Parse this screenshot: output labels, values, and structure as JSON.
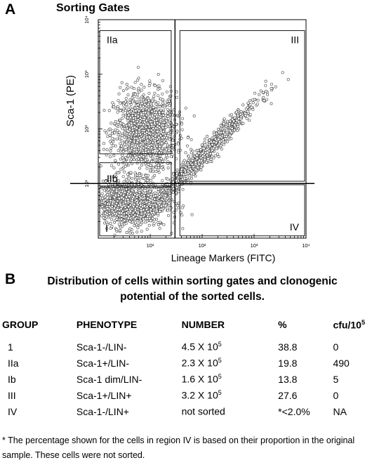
{
  "panel_a": {
    "letter": "A",
    "title": "Sorting Gates"
  },
  "chart_data": {
    "type": "scatter",
    "title": "Sorting Gates",
    "xlabel": "Lineage Markers (FITC)",
    "ylabel": "Sca-1 (PE)",
    "xscale": "log",
    "yscale": "log",
    "x_ticks": [
      "10⁰",
      "10¹",
      "10²",
      "10³",
      "10⁴"
    ],
    "y_ticks": [
      "10⁰",
      "10¹",
      "10²",
      "10³",
      "10⁴"
    ],
    "xlim": [
      1,
      10000
    ],
    "ylim": [
      1,
      10000
    ],
    "threshold_x": 30,
    "threshold_y": 10,
    "gates": [
      {
        "label": "IIa",
        "x": [
          1,
          27
        ],
        "y": [
          35,
          6300
        ]
      },
      {
        "label": "III",
        "x": [
          35,
          10000
        ],
        "y": [
          11,
          6300
        ]
      },
      {
        "label": "IIb",
        "x": [
          1,
          27
        ],
        "y": [
          9,
          24
        ]
      },
      {
        "label": "IV",
        "x": [
          35,
          10000
        ],
        "y": [
          1.1,
          9.5
        ]
      },
      {
        "label": "I",
        "x": [
          1,
          27
        ],
        "y": [
          1.1,
          8.5
        ]
      }
    ],
    "populations": [
      {
        "name": "",
        "mean_log_x": 0.9,
        "mean_log_y": 1.95,
        "sd_log_x": 0.3,
        "sd_log_y": 0.36,
        "count": 1400
      },
      {
        "name": "",
        "mean_log_x": 0.55,
        "mean_log_y": 0.65,
        "sd_log_x": 0.38,
        "sd_log_y": 0.22,
        "count": 1200
      },
      {
        "name": "",
        "mean_log_x": 2.0,
        "mean_log_y": 1.5,
        "sd_log_x": 0.52,
        "sd_log_y": 0.1,
        "count": 1000,
        "correlated": true
      }
    ]
  },
  "panel_b": {
    "letter": "B",
    "title": "Distribution of cells within sorting gates and clonogenic potential of the sorted cells."
  },
  "table": {
    "headers": {
      "group": "GROUP",
      "phenotype": "PHENOTYPE",
      "number": "NUMBER",
      "percent": "%",
      "cfu": "cfu/10",
      "cfu_exp": "5"
    },
    "rows": [
      {
        "group": "1",
        "phenotype": "Sca-1-/LIN-",
        "number": "4.5 X 10",
        "exp": "5",
        "percent": "38.8",
        "cfu": "0"
      },
      {
        "group": "IIa",
        "phenotype": "Sca-1+/LIN-",
        "number": "2.3 X 10",
        "exp": "5",
        "percent": "19.8",
        "cfu": "490"
      },
      {
        "group": "Ib",
        "phenotype": "Sca-1 dim/LIN-",
        "number": "1.6 X 10",
        "exp": "5",
        "percent": "13.8",
        "cfu": "5"
      },
      {
        "group": "III",
        "phenotype": "Sca-1+/LIN+",
        "number": "3.2 X 10",
        "exp": "5",
        "percent": "27.6",
        "cfu": "0"
      },
      {
        "group": "IV",
        "phenotype": "Sca-1-/LIN+",
        "number": "not sorted",
        "exp": "",
        "percent": "*<2.0%",
        "cfu": "NA"
      }
    ]
  },
  "footnote": {
    "mark": "*",
    "text": " The percentage shown for the cells in region IV is based on their proportion in the original sample.  These cells were not  sorted."
  }
}
